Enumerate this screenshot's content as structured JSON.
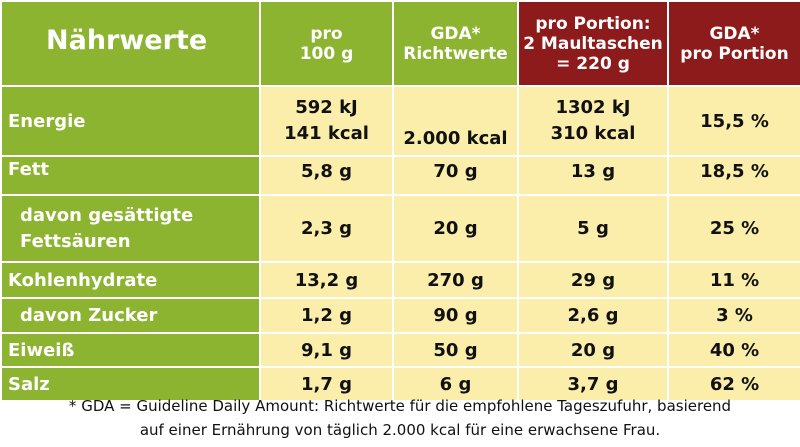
{
  "header": {
    "title": "Nährwerte",
    "col_pro_100g": [
      "pro",
      "100 g"
    ],
    "col_gda": [
      "GDA*",
      "Richtwerte"
    ],
    "col_portion": [
      "pro Portion:",
      "2 Maultaschen",
      "= 220 g"
    ],
    "col_gda_portion": [
      "GDA*",
      "pro Portion"
    ]
  },
  "rows": [
    {
      "label": [
        "Energie"
      ],
      "per100": [
        "592 kJ",
        "141 kcal"
      ],
      "gda": "2.000 kcal",
      "portion": [
        "1302 kJ",
        "310 kcal"
      ],
      "gda_portion": "15,5 %"
    },
    {
      "label": [
        "Fett"
      ],
      "per100": [
        "5,8 g"
      ],
      "gda": "70 g",
      "portion": [
        "13 g"
      ],
      "gda_portion": "18,5 %"
    },
    {
      "label": [
        "davon gesättigte",
        "Fettsäuren"
      ],
      "per100": [
        "2,3 g"
      ],
      "gda": "20 g",
      "portion": [
        "5 g"
      ],
      "gda_portion": "25 %"
    },
    {
      "label": [
        "Kohlenhydrate"
      ],
      "per100": [
        "13,2 g"
      ],
      "gda": "270 g",
      "portion": [
        "29 g"
      ],
      "gda_portion": "11 %"
    },
    {
      "label": [
        "davon Zucker"
      ],
      "per100": [
        "1,2 g"
      ],
      "gda": "90 g",
      "portion": [
        "2,6 g"
      ],
      "gda_portion": "3 %"
    },
    {
      "label": [
        "Eiweiß"
      ],
      "per100": [
        "9,1 g"
      ],
      "gda": "50 g",
      "portion": [
        "20 g"
      ],
      "gda_portion": "40 %"
    },
    {
      "label": [
        "Salz"
      ],
      "per100": [
        "1,7 g"
      ],
      "gda": "6 g",
      "portion": [
        "3,7 g"
      ],
      "gda_portion": "62 %"
    }
  ],
  "footnote": [
    "* GDA = Guideline Daily Amount: Richtwerte für die empfohlene Tageszufuhr, basierend",
    "auf einer Ernährung von täglich 2.000 kcal für eine erwachsene Frau."
  ],
  "colors": {
    "green": "#8cb431",
    "dark_red": "#8e1b1b",
    "cell_yellow": "#fbeeaa"
  }
}
